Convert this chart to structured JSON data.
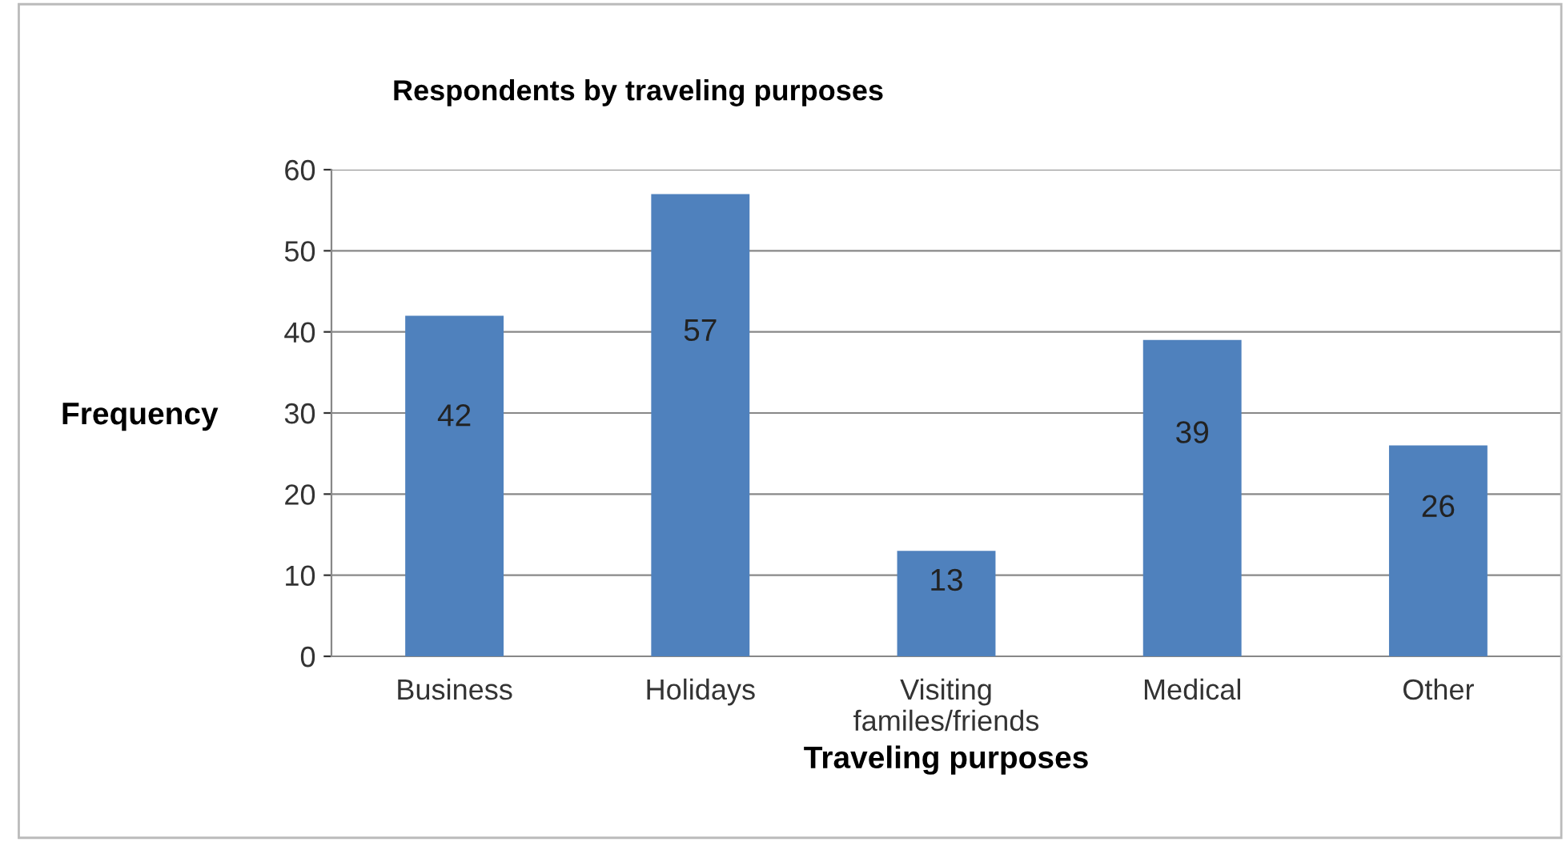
{
  "chart_data": {
    "type": "bar",
    "title": "Respondents by traveling purposes",
    "xlabel": "Traveling purposes",
    "ylabel": "Frequency",
    "categories": [
      "Business",
      "Holidays",
      "Visiting\nfamiles/friends",
      "Medical",
      "Other"
    ],
    "values": [
      42,
      57,
      13,
      39,
      26
    ],
    "color": "#4f81bd",
    "ylim": [
      0,
      60
    ],
    "yticks": [
      0,
      10,
      20,
      30,
      40,
      50,
      60
    ],
    "grid": "y",
    "data_labels": true,
    "legend": false
  }
}
